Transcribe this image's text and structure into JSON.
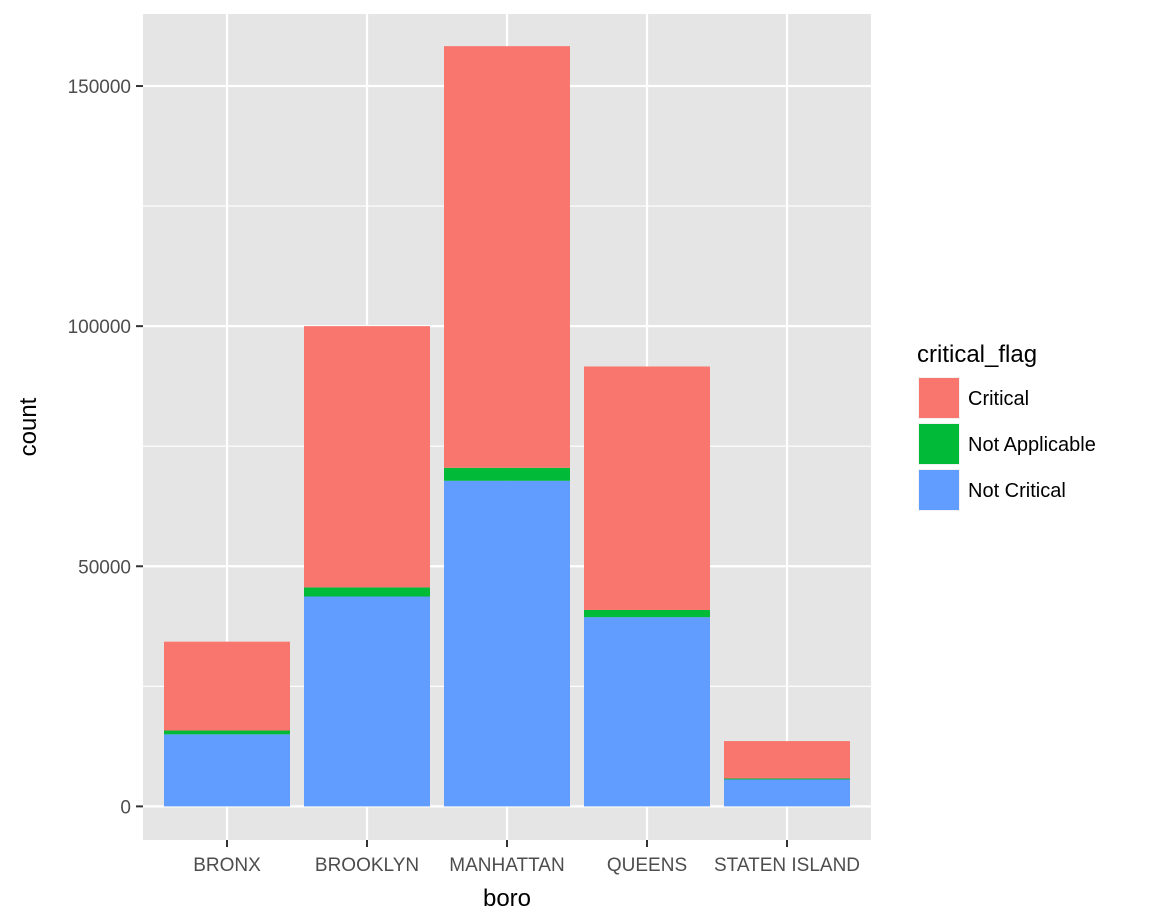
{
  "chart_data": {
    "type": "bar",
    "stacked": true,
    "title": "",
    "xlabel": "boro",
    "ylabel": "count",
    "ylim": [
      -7000,
      165000
    ],
    "yticks": [
      0,
      50000,
      100000,
      150000
    ],
    "yticks_labels": [
      "0",
      "50000",
      "100000",
      "150000"
    ],
    "categories": [
      "BRONX",
      "BROOKLYN",
      "MANHATTAN",
      "QUEENS",
      "STATEN ISLAND"
    ],
    "series": [
      {
        "name": "Not Critical",
        "color": "#619CFF",
        "values": [
          15000,
          43700,
          67800,
          39400,
          5600
        ]
      },
      {
        "name": "Not Applicable",
        "color": "#00BA38",
        "values": [
          800,
          1900,
          2700,
          1500,
          200
        ]
      },
      {
        "name": "Critical",
        "color": "#F8766D",
        "values": [
          18500,
          54400,
          87800,
          50700,
          7800
        ]
      }
    ],
    "legend": {
      "title": "critical_flag",
      "placement": "right",
      "items": [
        {
          "label": "Critical",
          "color": "#F8766D"
        },
        {
          "label": "Not Applicable",
          "color": "#00BA38"
        },
        {
          "label": "Not Critical",
          "color": "#619CFF"
        }
      ]
    },
    "grid": true,
    "panel_background": "#E5E5E5",
    "grid_color": "#FFFFFF"
  }
}
